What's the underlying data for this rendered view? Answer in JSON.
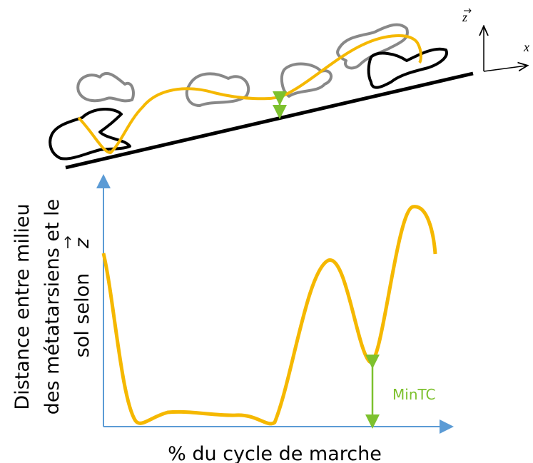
{
  "vector_labels": {
    "z": "z",
    "x": "x"
  },
  "axis_labels": {
    "x": "% du cycle de marche",
    "y": [
      "Distance entre milieu",
      "des métatarsiens et le",
      "sol selon"
    ],
    "y_vector": "z"
  },
  "annotation": "MinTC"
}
